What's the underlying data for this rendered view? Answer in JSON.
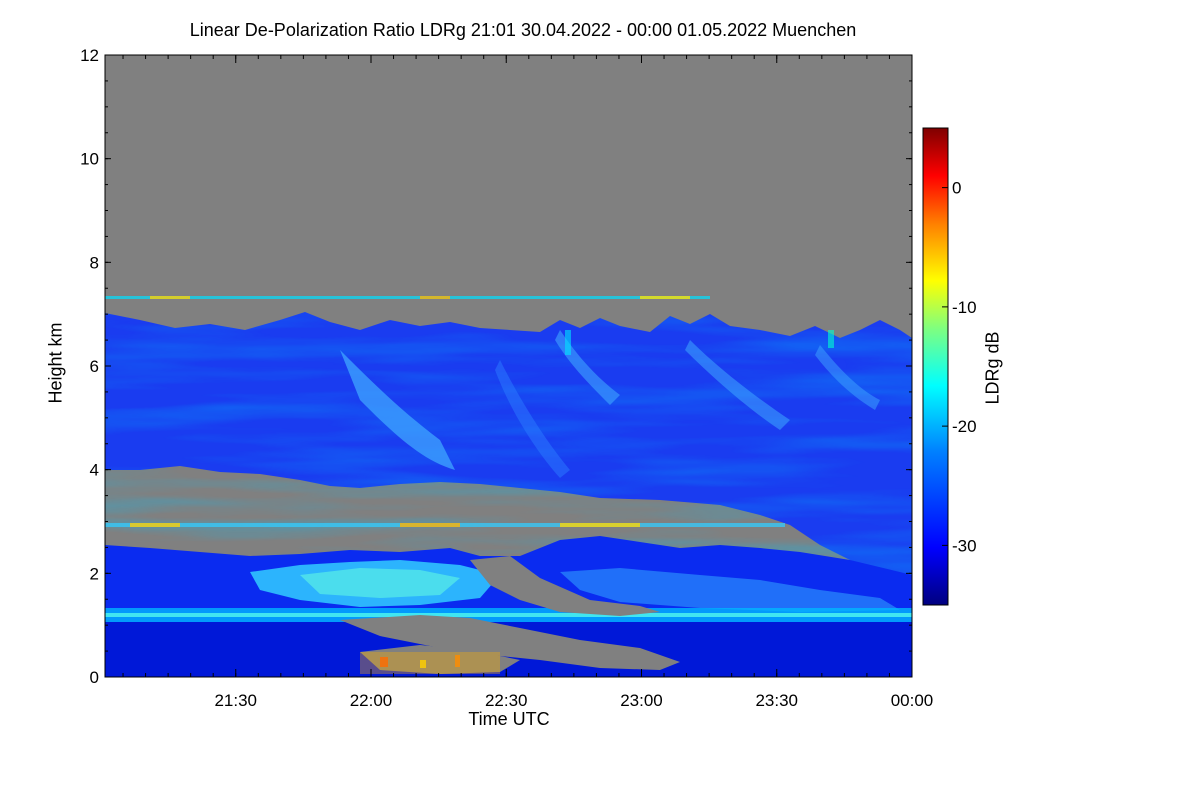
{
  "chart_data": {
    "type": "heatmap",
    "title": "Linear De-Polarization Ratio LDRg   21:01 30.04.2022 - 00:00 01.05.2022 Muenchen",
    "xlabel": "Time UTC",
    "ylabel": "Height km",
    "x_ticks": [
      "21:30",
      "22:00",
      "22:30",
      "23:00",
      "23:30",
      "00:00"
    ],
    "x_range": [
      "21:01",
      "00:00"
    ],
    "y_ticks": [
      0,
      2,
      4,
      6,
      8,
      10,
      12
    ],
    "y_range": [
      0,
      12
    ],
    "colorbar": {
      "label": "LDRg dB",
      "ticks": [
        0,
        -10,
        -20,
        -30
      ],
      "range": [
        -35,
        5
      ],
      "colormap": [
        "#00007f",
        "#0000ff",
        "#007fff",
        "#00ffff",
        "#7fff7f",
        "#ffff00",
        "#ff7f00",
        "#ff0000",
        "#7f0000"
      ]
    },
    "no_data_color": "#808080",
    "layers": [
      {
        "name": "upper-cloud",
        "base_km": 4.0,
        "top_km": 7.0
      },
      {
        "name": "boundary-layer",
        "base_km": 0.0,
        "top_km": 2.5
      },
      {
        "name": "bright-band",
        "height_km": 1.1
      },
      {
        "name": "streak",
        "height_km": 7.3
      },
      {
        "name": "streak",
        "height_km": 2.9
      }
    ]
  }
}
